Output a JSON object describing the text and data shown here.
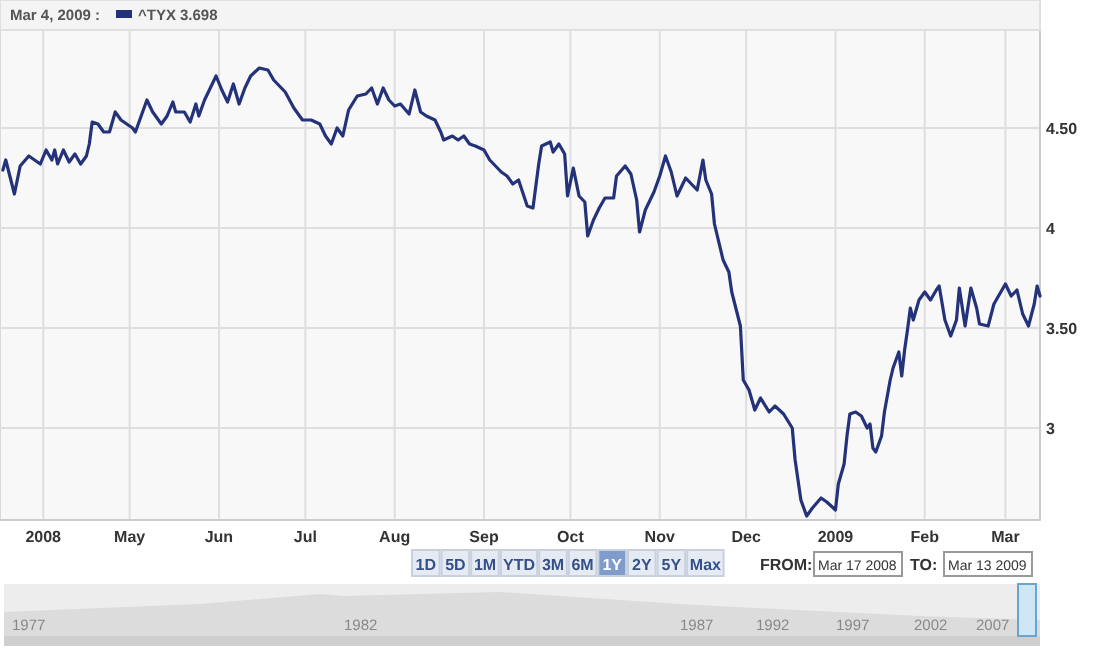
{
  "chart_data": {
    "type": "line",
    "legend": "top left",
    "grid": true,
    "xlim": [
      "2008-03-17",
      "2009-03-13"
    ],
    "ylim": [
      2.54,
      4.99
    ],
    "yticks": [
      {
        "value": 4.5,
        "label": "4.50"
      },
      4,
      {
        "value": 3.5,
        "label": "3.50"
      },
      3
    ],
    "xticks": [
      {
        "value": "2008-04-01",
        "label": "2008"
      },
      {
        "value": "2008-05-01",
        "label": "May"
      },
      {
        "value": "2008-06-01",
        "label": "Jun"
      },
      {
        "value": "2008-07-01",
        "label": "Jul"
      },
      {
        "value": "2008-08-01",
        "label": "Aug"
      },
      {
        "value": "2008-09-01",
        "label": "Sep"
      },
      {
        "value": "2008-10-01",
        "label": "Oct"
      },
      {
        "value": "2008-11-01",
        "label": "Nov"
      },
      {
        "value": "2008-12-01",
        "label": "Dec"
      },
      {
        "value": "2009-01-01",
        "label": "2009"
      },
      {
        "value": "2009-02-01",
        "label": "Feb"
      },
      {
        "value": "2009-03-01",
        "label": "Mar"
      }
    ],
    "annotations": [
      "Mar 4, 2009 :",
      "3.698",
      "1D",
      "5D",
      "1M",
      "YTD",
      "3M",
      "6M",
      "1Y",
      "2Y",
      "5Y",
      "Max",
      "FROM:",
      "Mar 17 2008",
      "TO:",
      "Mar 13 2009",
      "1977",
      "1982",
      "1987",
      "1992",
      "1997",
      "2002",
      "2007"
    ],
    "series": [
      {
        "name": "^TYX",
        "color": "#24327a",
        "x": [
          "2008-03-18",
          "2008-03-19",
          "2008-03-22",
          "2008-03-24",
          "2008-03-27",
          "2008-03-31",
          "2008-04-02",
          "2008-04-04",
          "2008-04-05",
          "2008-04-06",
          "2008-04-08",
          "2008-04-10",
          "2008-04-12",
          "2008-04-14",
          "2008-04-16",
          "2008-04-17",
          "2008-04-18",
          "2008-04-20",
          "2008-04-22",
          "2008-04-24",
          "2008-04-26",
          "2008-04-28",
          "2008-05-02",
          "2008-05-03",
          "2008-05-05",
          "2008-05-07",
          "2008-05-09",
          "2008-05-12",
          "2008-05-14",
          "2008-05-16",
          "2008-05-17",
          "2008-05-20",
          "2008-05-22",
          "2008-05-24",
          "2008-05-25",
          "2008-05-27",
          "2008-05-31",
          "2008-06-02",
          "2008-06-04",
          "2008-06-06",
          "2008-06-08",
          "2008-06-10",
          "2008-06-12",
          "2008-06-15",
          "2008-06-18",
          "2008-06-20",
          "2008-06-24",
          "2008-06-27",
          "2008-06-30",
          "2008-07-03",
          "2008-07-06",
          "2008-07-08",
          "2008-07-10",
          "2008-07-12",
          "2008-07-14",
          "2008-07-16",
          "2008-07-19",
          "2008-07-22",
          "2008-07-24",
          "2008-07-26",
          "2008-07-28",
          "2008-07-30",
          "2008-08-01",
          "2008-08-03",
          "2008-08-06",
          "2008-08-08",
          "2008-08-10",
          "2008-08-12",
          "2008-08-15",
          "2008-08-17",
          "2008-08-18",
          "2008-08-21",
          "2008-08-23",
          "2008-08-25",
          "2008-08-27",
          "2008-08-29",
          "2008-09-01",
          "2008-09-03",
          "2008-09-07",
          "2008-09-09",
          "2008-09-11",
          "2008-09-13",
          "2008-09-16",
          "2008-09-18",
          "2008-09-20",
          "2008-09-21",
          "2008-09-24",
          "2008-09-25",
          "2008-09-27",
          "2008-09-29",
          "2008-09-30",
          "2008-10-02",
          "2008-10-04",
          "2008-10-06",
          "2008-10-07",
          "2008-10-09",
          "2008-10-11",
          "2008-10-13",
          "2008-10-16",
          "2008-10-17",
          "2008-10-20",
          "2008-10-22",
          "2008-10-24",
          "2008-10-25",
          "2008-10-27",
          "2008-10-30",
          "2008-11-01",
          "2008-11-03",
          "2008-11-05",
          "2008-11-07",
          "2008-11-10",
          "2008-11-12",
          "2008-11-14",
          "2008-11-16",
          "2008-11-17",
          "2008-11-19",
          "2008-11-20",
          "2008-11-23",
          "2008-11-25",
          "2008-11-26",
          "2008-11-29",
          "2008-11-30",
          "2008-12-02",
          "2008-12-04",
          "2008-12-06",
          "2008-12-09",
          "2008-12-11",
          "2008-12-14",
          "2008-12-17",
          "2008-12-18",
          "2008-12-20",
          "2008-12-22",
          "2008-12-24",
          "2008-12-27",
          "2008-12-29",
          "2009-01-01",
          "2009-01-02",
          "2009-01-04",
          "2009-01-05",
          "2009-01-06",
          "2009-01-08",
          "2009-01-10",
          "2009-01-12",
          "2009-01-13",
          "2009-01-14",
          "2009-01-15",
          "2009-01-17",
          "2009-01-18",
          "2009-01-20",
          "2009-01-21",
          "2009-01-23",
          "2009-01-24",
          "2009-01-25",
          "2009-01-26",
          "2009-01-27",
          "2009-01-28",
          "2009-01-30",
          "2009-02-01",
          "2009-02-03",
          "2009-02-05",
          "2009-02-06",
          "2009-02-08",
          "2009-02-10",
          "2009-02-12",
          "2009-02-13",
          "2009-02-15",
          "2009-02-17",
          "2009-02-19",
          "2009-02-20",
          "2009-02-23",
          "2009-02-25",
          "2009-02-27",
          "2009-03-01",
          "2009-03-03",
          "2009-03-05",
          "2009-03-07",
          "2009-03-09",
          "2009-03-11",
          "2009-03-12",
          "2009-03-13"
        ],
        "values": [
          4.29,
          4.34,
          4.17,
          4.31,
          4.36,
          4.32,
          4.39,
          4.34,
          4.39,
          4.32,
          4.39,
          4.33,
          4.37,
          4.32,
          4.36,
          4.42,
          4.53,
          4.52,
          4.48,
          4.48,
          4.58,
          4.54,
          4.5,
          4.48,
          4.56,
          4.64,
          4.58,
          4.52,
          4.56,
          4.63,
          4.58,
          4.58,
          4.53,
          4.62,
          4.56,
          4.64,
          4.76,
          4.69,
          4.63,
          4.72,
          4.62,
          4.7,
          4.76,
          4.8,
          4.79,
          4.74,
          4.68,
          4.6,
          4.54,
          4.54,
          4.52,
          4.46,
          4.42,
          4.5,
          4.46,
          4.59,
          4.66,
          4.67,
          4.7,
          4.62,
          4.7,
          4.64,
          4.61,
          4.62,
          4.57,
          4.69,
          4.58,
          4.56,
          4.54,
          4.48,
          4.44,
          4.46,
          4.44,
          4.46,
          4.42,
          4.41,
          4.39,
          4.34,
          4.28,
          4.26,
          4.22,
          4.24,
          4.11,
          4.1,
          4.32,
          4.41,
          4.43,
          4.38,
          4.42,
          4.37,
          4.16,
          4.3,
          4.16,
          4.13,
          3.96,
          4.04,
          4.1,
          4.15,
          4.15,
          4.26,
          4.31,
          4.27,
          4.14,
          3.98,
          4.09,
          4.18,
          4.26,
          4.36,
          4.28,
          4.16,
          4.25,
          4.22,
          4.19,
          4.34,
          4.24,
          4.17,
          4.02,
          3.84,
          3.78,
          3.68,
          3.51,
          3.24,
          3.19,
          3.09,
          3.15,
          3.08,
          3.11,
          3.07,
          3.0,
          2.84,
          2.64,
          2.56,
          2.6,
          2.65,
          2.63,
          2.59,
          2.72,
          2.82,
          2.96,
          3.07,
          3.08,
          3.06,
          3.0,
          3.02,
          2.9,
          2.88,
          2.96,
          3.08,
          3.24,
          3.3,
          3.38,
          3.26,
          3.39,
          3.49,
          3.6,
          3.54,
          3.64,
          3.68,
          3.64,
          3.69,
          3.71,
          3.54,
          3.46,
          3.54,
          3.7,
          3.51,
          3.7,
          3.6,
          3.52,
          3.51,
          3.62,
          3.67,
          3.72,
          3.66,
          3.69,
          3.57,
          3.51,
          3.62,
          3.71,
          3.66
        ]
      }
    ]
  }
}
